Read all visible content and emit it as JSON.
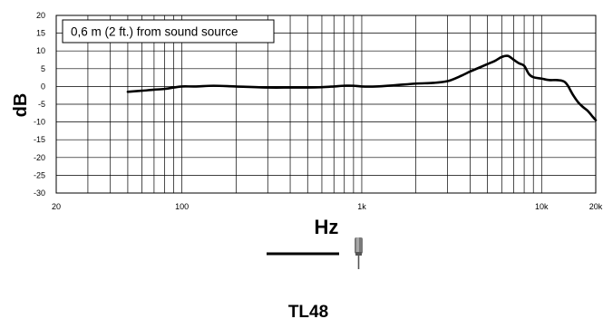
{
  "chart_data": {
    "type": "line",
    "title": "",
    "xlabel": "Hz",
    "ylabel": "dB",
    "xscale": "log",
    "xlim": [
      20,
      20000
    ],
    "ylim": [
      -30,
      20
    ],
    "x_tick_labels": [
      {
        "value": 20,
        "label": "20"
      },
      {
        "value": 100,
        "label": "100"
      },
      {
        "value": 1000,
        "label": "1k"
      },
      {
        "value": 10000,
        "label": "10k"
      },
      {
        "value": 20000,
        "label": "20k"
      }
    ],
    "y_ticks": [
      20,
      15,
      10,
      5,
      0,
      -5,
      -10,
      -15,
      -20,
      -25,
      -30
    ],
    "grid": true,
    "annotation": "0,6 m (2 ft.) from sound source",
    "legend": {
      "placement": "bottom-center",
      "icon": "lavalier-microphone-icon",
      "line_color": "#000000"
    },
    "model_label": "TL48",
    "series": [
      {
        "color": "#000000",
        "x": [
          50,
          60,
          70,
          80,
          90,
          100,
          120,
          150,
          200,
          300,
          400,
          500,
          600,
          700,
          800,
          900,
          1000,
          1200,
          1500,
          2000,
          2500,
          3000,
          3500,
          4000,
          4500,
          5000,
          5500,
          6000,
          6500,
          7000,
          7500,
          8000,
          8500,
          9000,
          10000,
          11000,
          12000,
          13000,
          13500,
          14000,
          15000,
          16000,
          17000,
          18000,
          19000,
          20000
        ],
        "y": [
          -1.5,
          -1.2,
          -0.9,
          -0.7,
          -0.3,
          0,
          0,
          0.2,
          0,
          -0.3,
          -0.3,
          -0.3,
          -0.2,
          0,
          0.2,
          0.2,
          0,
          0,
          0.3,
          0.8,
          1.0,
          1.5,
          2.8,
          4.2,
          5.3,
          6.3,
          7.2,
          8.3,
          8.6,
          7.5,
          6.5,
          5.8,
          3.5,
          2.6,
          2.2,
          1.8,
          1.8,
          1.6,
          1.2,
          0.2,
          -2.5,
          -4.5,
          -5.8,
          -6.8,
          -8.2,
          -9.5
        ]
      }
    ]
  }
}
